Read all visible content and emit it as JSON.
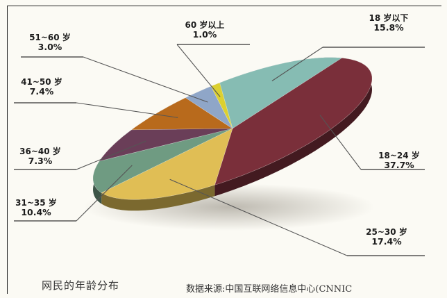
{
  "chart_data": {
    "type": "pie",
    "title": "",
    "caption": "网民的年龄分布",
    "source": "数据来源:中国互联网络信息中心(CNNIC",
    "slices": [
      {
        "name": "18 岁以下",
        "value": 15.8,
        "label": "15.8%",
        "color": "#86bcb3"
      },
      {
        "name": "18~24 岁",
        "value": 37.7,
        "label": "37.7%",
        "color": "#7a2f3a"
      },
      {
        "name": "25~30 岁",
        "value": 17.4,
        "label": "17.4%",
        "color": "#e0be55"
      },
      {
        "name": "31~35 岁",
        "value": 10.4,
        "label": "10.4%",
        "color": "#6f9b82"
      },
      {
        "name": "36~40 岁",
        "value": 7.3,
        "label": "7.3%",
        "color": "#6a3e58"
      },
      {
        "name": "41~50 岁",
        "value": 7.4,
        "label": "7.4%",
        "color": "#b86a1c"
      },
      {
        "name": "51~60 岁",
        "value": 3.0,
        "label": "3.0%",
        "color": "#8fa6c8"
      },
      {
        "name": "60 岁以上",
        "value": 1.0,
        "label": "1.0%",
        "color": "#dcd030"
      }
    ]
  }
}
